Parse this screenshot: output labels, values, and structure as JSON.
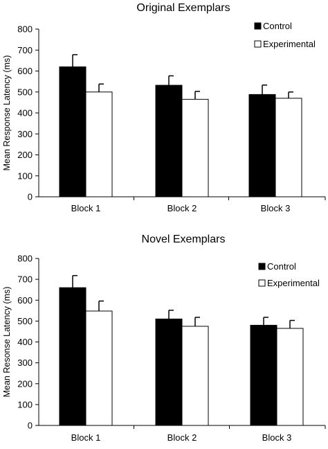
{
  "chart_data": [
    {
      "type": "bar",
      "title": "Original Exemplars",
      "xlabel": "",
      "ylabel": "Mean Response Latency (ms)",
      "ylim": [
        0,
        800
      ],
      "yticks": [
        0,
        100,
        200,
        300,
        400,
        500,
        600,
        700,
        800
      ],
      "categories": [
        "Block 1",
        "Block 2",
        "Block 3"
      ],
      "series": [
        {
          "name": "Control",
          "color": "#000000",
          "values": [
            620,
            532,
            488
          ],
          "errors": [
            58,
            45,
            45
          ]
        },
        {
          "name": "Experimental",
          "color": "#ffffff",
          "values": [
            500,
            465,
            470
          ],
          "errors": [
            38,
            38,
            30
          ]
        }
      ],
      "legend": "top-right",
      "grid": false
    },
    {
      "type": "bar",
      "title": "Novel Exemplars",
      "xlabel": "",
      "ylabel": "Mean Resonse Latency (ms)",
      "ylim": [
        0,
        800
      ],
      "yticks": [
        0,
        100,
        200,
        300,
        400,
        500,
        600,
        700,
        800
      ],
      "categories": [
        "Block 1",
        "Block 2",
        "Block 3"
      ],
      "series": [
        {
          "name": "Control",
          "color": "#000000",
          "values": [
            660,
            510,
            480
          ],
          "errors": [
            58,
            42,
            38
          ]
        },
        {
          "name": "Experimental",
          "color": "#ffffff",
          "values": [
            548,
            475,
            465
          ],
          "errors": [
            48,
            43,
            38
          ]
        }
      ],
      "legend": "top-right",
      "grid": false
    }
  ]
}
